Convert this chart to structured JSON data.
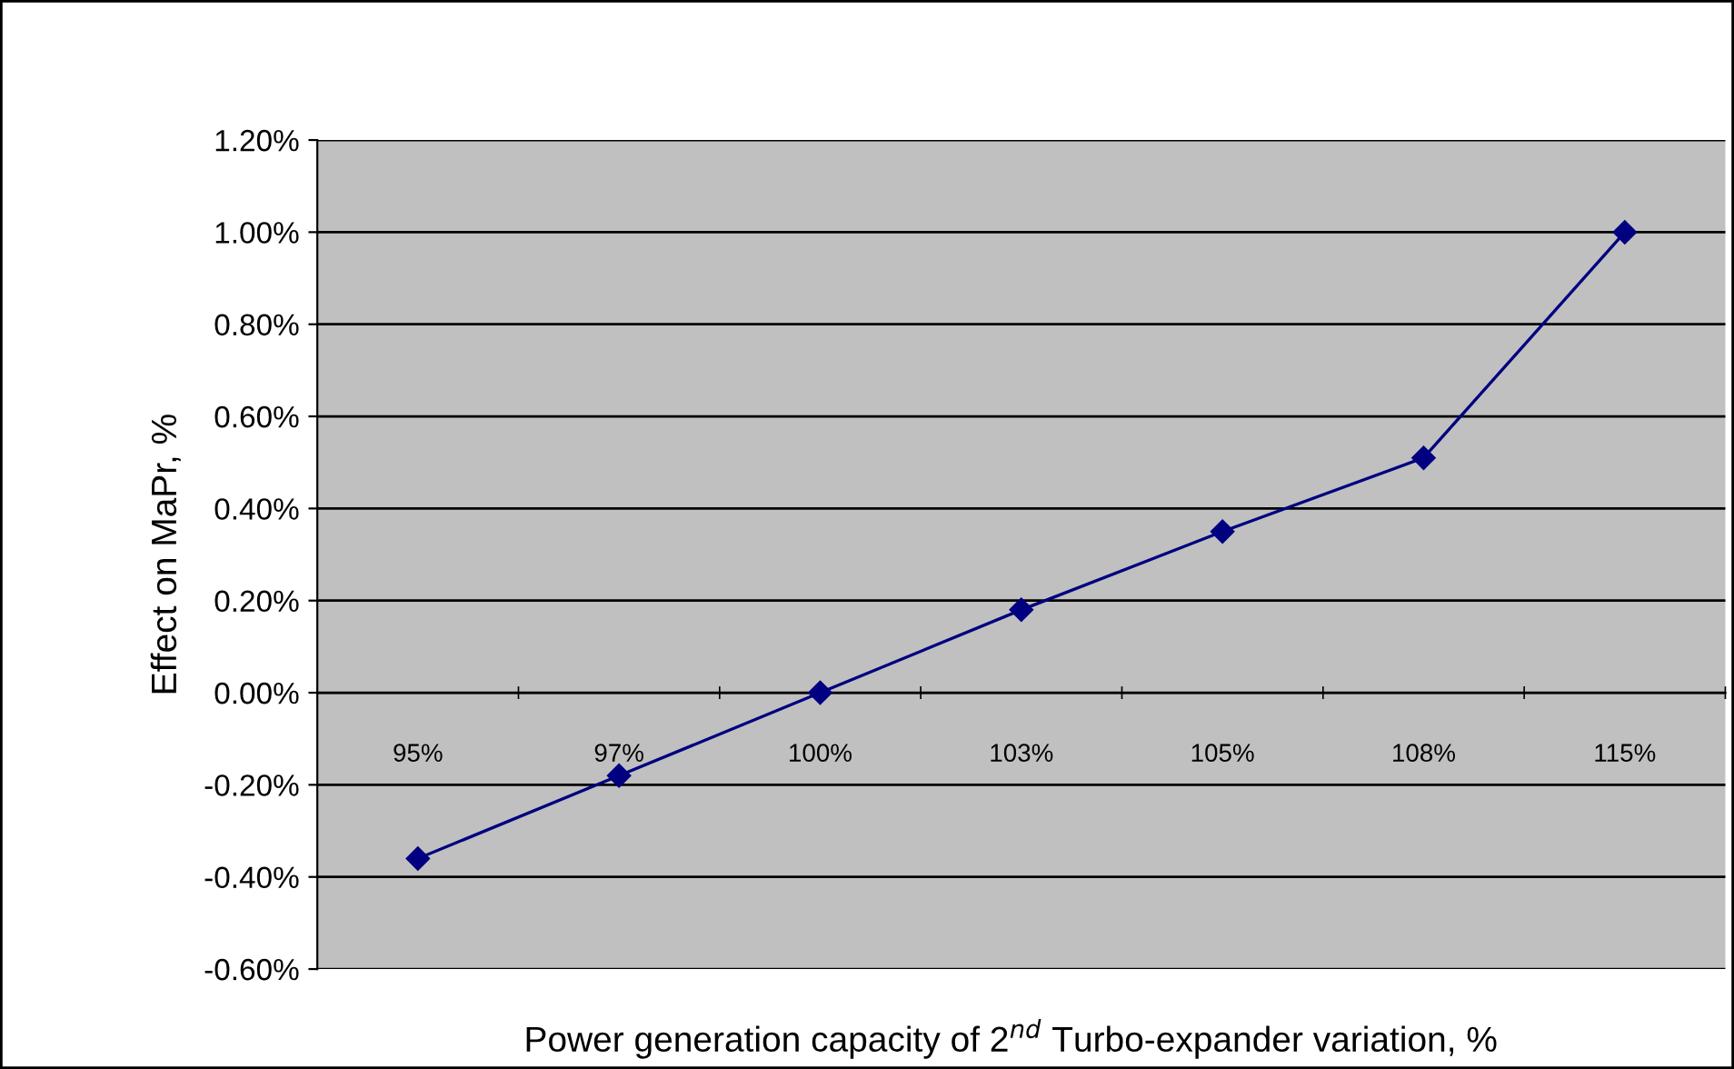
{
  "chart_data": {
    "type": "line",
    "xlabel": "Power generation capacity of 2$^{nd}$ Turbo-expander variation, %",
    "ylabel": "Effect on MaPr, %",
    "categories": [
      "95%",
      "97%",
      "100%",
      "103%",
      "105%",
      "108%",
      "115%"
    ],
    "series": [
      {
        "color": "#000080",
        "values": [
          -0.36,
          -0.18,
          0.0,
          0.18,
          0.35,
          0.51,
          1.0
        ]
      }
    ],
    "ylim": [
      -0.6,
      1.2
    ],
    "yticks": [
      {
        "value": -0.6,
        "label": "-0.60%"
      },
      {
        "value": -0.4,
        "label": "-0.40%"
      },
      {
        "value": -0.2,
        "label": "-0.20%"
      },
      {
        "value": 0,
        "label": "0.00%"
      },
      {
        "value": 0.2,
        "label": "0.20%"
      },
      {
        "value": 0.4,
        "label": "0.40%"
      },
      {
        "value": 0.6,
        "label": "0.60%"
      },
      {
        "value": 0.8,
        "label": "0.80%"
      },
      {
        "value": 1.0,
        "label": "1.00%"
      },
      {
        "value": 1.2,
        "label": "1.20%"
      }
    ],
    "grid": "y",
    "marker": "diamond",
    "line_style": "solid",
    "legend": false
  }
}
